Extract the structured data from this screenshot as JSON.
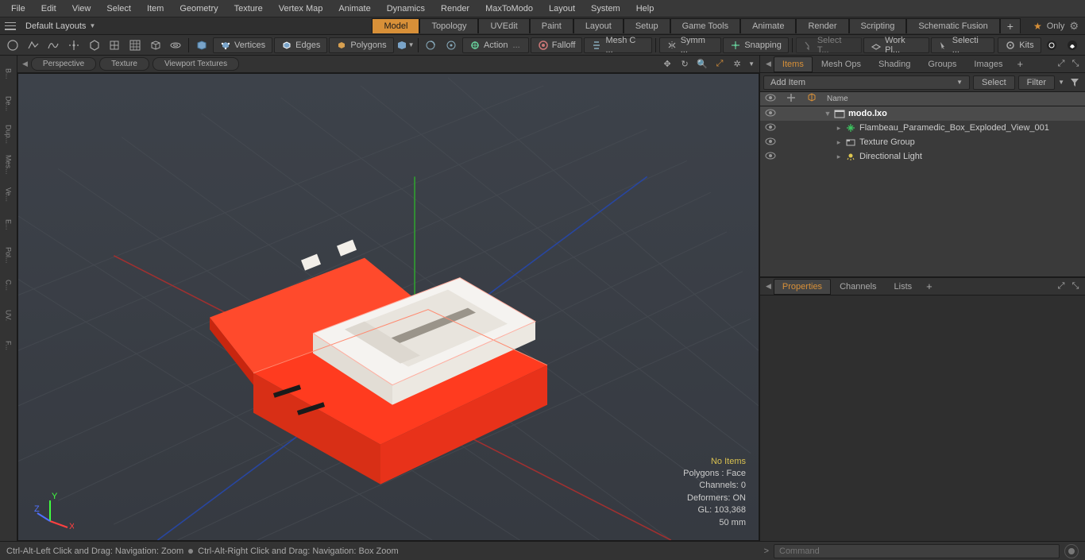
{
  "menubar": [
    "File",
    "Edit",
    "View",
    "Select",
    "Item",
    "Geometry",
    "Texture",
    "Vertex Map",
    "Animate",
    "Dynamics",
    "Render",
    "MaxToModo",
    "Layout",
    "System",
    "Help"
  ],
  "layoutbar": {
    "dropdown_label": "Default Layouts",
    "tabs": [
      "Model",
      "Topology",
      "UVEdit",
      "Paint",
      "Layout",
      "Setup",
      "Game Tools",
      "Animate",
      "Render",
      "Scripting",
      "Schematic Fusion"
    ],
    "active_tab": "Model",
    "only_label": "Only"
  },
  "toolshelf": {
    "sel_vertices": "Vertices",
    "sel_edges": "Edges",
    "sel_polygons": "Polygons",
    "action": "Action",
    "falloff": "Falloff",
    "meshc": "Mesh C ...",
    "symm": "Symm ...",
    "snapping": "Snapping",
    "select_t": "Select T...",
    "workpl": "Work Pl...",
    "selecti": "Selecti ...",
    "kits": "Kits"
  },
  "viewport": {
    "tabs": [
      "Perspective",
      "Texture",
      "Viewport Textures"
    ],
    "info": {
      "no_items": "No Items",
      "polygons": "Polygons : Face",
      "channels": "Channels: 0",
      "deformers": "Deformers: ON",
      "gl": "GL: 103,368",
      "unit": "50 mm"
    },
    "axis_colors": {
      "x": "#ff4040",
      "y": "#40ff40",
      "z": "#5070ff"
    },
    "model_color": "#ff3b1f",
    "tray_color": "#f5f3f0"
  },
  "rightpanel": {
    "tabs": [
      "Items",
      "Mesh Ops",
      "Shading",
      "Groups",
      "Images"
    ],
    "active_tab": "Items",
    "add_item": "Add Item",
    "select_btn": "Select",
    "filter_btn": "Filter",
    "col_name": "Name",
    "tree": {
      "scene": "modo.lxo",
      "items": [
        {
          "label": "Flambeau_Paramedic_Box_Exploded_View_001",
          "icon": "mesh",
          "color": "#3cc860"
        },
        {
          "label": "Texture Group",
          "icon": "group",
          "color": "#bbbbbb"
        },
        {
          "label": "Directional Light",
          "icon": "light",
          "color": "#e0c850"
        }
      ]
    },
    "lower_tabs": [
      "Properties",
      "Channels",
      "Lists"
    ],
    "lower_active": "Properties"
  },
  "statusbar": {
    "hint_left": "Ctrl-Alt-Left Click and Drag: Navigation: Zoom",
    "hint_right": "Ctrl-Alt-Right Click and Drag: Navigation: Box Zoom",
    "command_placeholder": "Command"
  }
}
